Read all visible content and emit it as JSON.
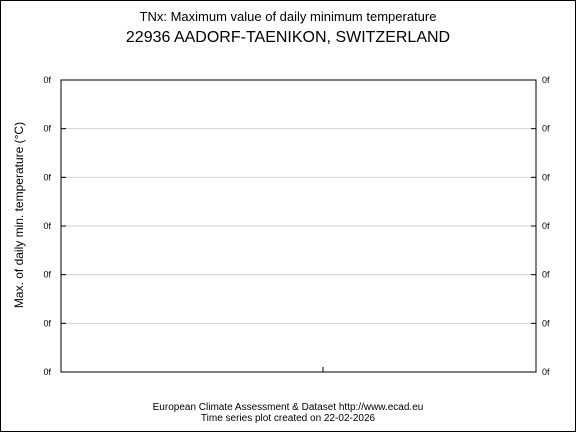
{
  "chart_data": {
    "type": "line",
    "title": "TNx: Maximum value of daily minimum temperature",
    "subtitle": "22936 AADORF-TAENIKON, SWITZERLAND",
    "xlabel": "",
    "ylabel": "Max. of daily min. temperature (°C)",
    "y_tick_labels": [
      "0f",
      "0f",
      "0f",
      "0f",
      "0f",
      "0f",
      "0f"
    ],
    "grid": true,
    "series": [],
    "footer": {
      "line1": "European Climate Assessment & Dataset  http://www.ecad.eu",
      "line2": "Time series plot created on 22-02-2026"
    },
    "colors": {
      "frame": "#000000",
      "grid": "#d3d3d3"
    }
  }
}
